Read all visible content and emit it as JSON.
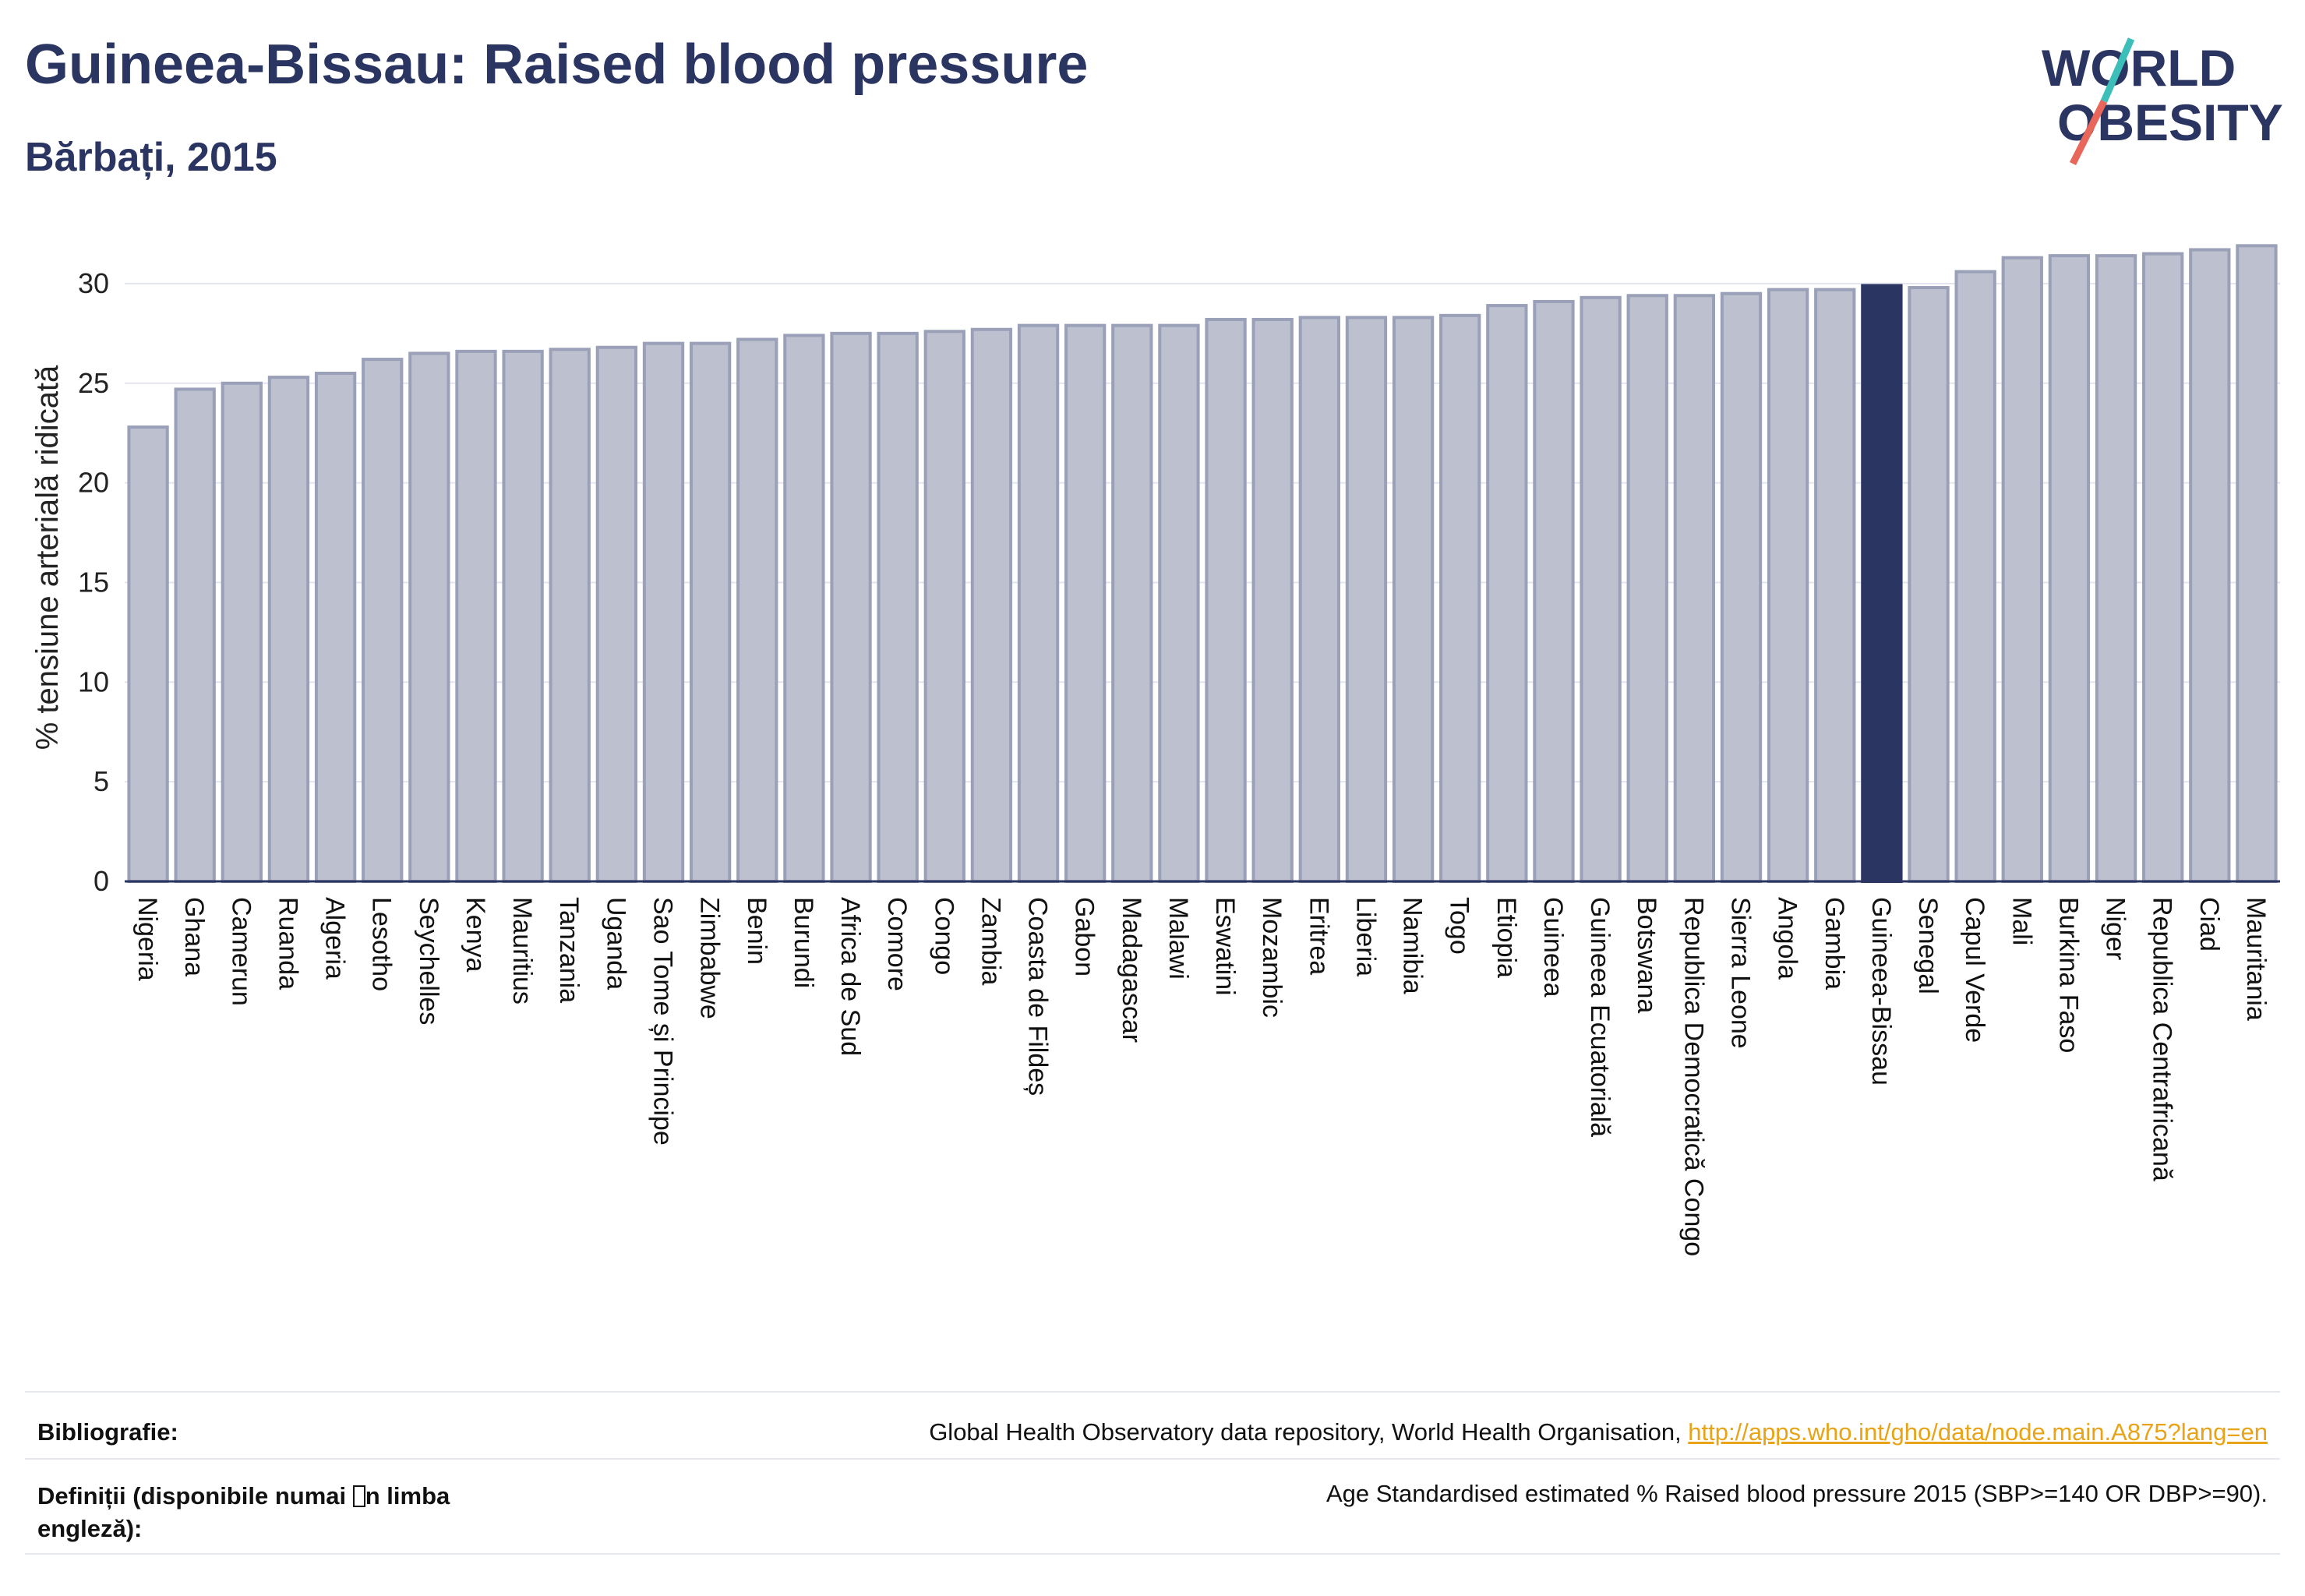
{
  "header": {
    "title": "Guineea-Bissau: Raised blood pressure",
    "subtitle": "Bărbați, 2015"
  },
  "logo": {
    "line1": "WORLD",
    "line2": "OBESITY"
  },
  "colors": {
    "bar": "#bcc0cf",
    "bar_stroke": "#9aa0b8",
    "highlight": "#2b3561",
    "grid": "#e3e5ee",
    "accent_teal": "#3bbfb8",
    "accent_red": "#e8665a"
  },
  "chart_data": {
    "type": "bar",
    "ylabel": "% tensiune arterială ridicată",
    "ylim": [
      0,
      32.5
    ],
    "yticks": [
      0,
      5,
      10,
      15,
      20,
      25,
      30
    ],
    "grid": true,
    "highlight": "Guineea-Bissau",
    "categories": [
      "Nigeria",
      "Ghana",
      "Camerun",
      "Ruanda",
      "Algeria",
      "Lesotho",
      "Seychelles",
      "Kenya",
      "Mauritius",
      "Tanzania",
      "Uganda",
      "Sao Tome și Principe",
      "Zimbabwe",
      "Benin",
      "Burundi",
      "Africa de Sud",
      "Comore",
      "Congo",
      "Zambia",
      "Coasta de Fildeș",
      "Gabon",
      "Madagascar",
      "Malawi",
      "Eswatini",
      "Mozambic",
      "Eritrea",
      "Liberia",
      "Namibia",
      "Togo",
      "Etiopia",
      "Guineea",
      "Guineea Ecuatorială",
      "Botswana",
      "Republica Democratică Congo",
      "Sierra Leone",
      "Angola",
      "Gambia",
      "Guineea-Bissau",
      "Senegal",
      "Capul Verde",
      "Mali",
      "Burkina Faso",
      "Niger",
      "Republica Centrafricană",
      "Ciad",
      "Mauritania"
    ],
    "values": [
      22.8,
      24.7,
      25.0,
      25.3,
      25.5,
      26.2,
      26.5,
      26.6,
      26.6,
      26.7,
      26.8,
      27.0,
      27.0,
      27.2,
      27.4,
      27.5,
      27.5,
      27.6,
      27.7,
      27.9,
      27.9,
      27.9,
      27.9,
      28.2,
      28.2,
      28.3,
      28.3,
      28.3,
      28.4,
      28.9,
      29.1,
      29.3,
      29.4,
      29.4,
      29.5,
      29.7,
      29.7,
      29.9,
      29.8,
      30.6,
      31.3,
      31.4,
      31.4,
      31.5,
      31.7,
      31.9
    ]
  },
  "footer": {
    "bibliography_label": "Bibliografie:",
    "bibliography_text": "Global Health Observatory data repository, World Health Organisation, ",
    "bibliography_link": "http://apps.who.int/gho/data/node.main.A875?lang=en",
    "definitions_label_1": "Definiții (disponibile numai ",
    "definitions_label_2": "n limba",
    "definitions_label_3": "engleză):",
    "definitions_text": "Age Standardised estimated % Raised blood pressure 2015 (SBP>=140 OR DBP>=90)."
  }
}
